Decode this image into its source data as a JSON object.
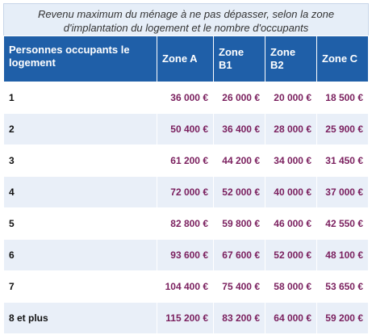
{
  "table": {
    "caption": "Revenu maximum du ménage à ne pas dépasser, selon la zone d'implantation du logement et le nombre d'occupants",
    "headers": [
      "Personnes occupants le logement",
      "Zone A",
      "Zone B1",
      "Zone B2",
      "Zone C"
    ],
    "rows": [
      [
        "1",
        "36 000 €",
        "26 000 €",
        "20 000 €",
        "18 500 €"
      ],
      [
        "2",
        "50 400 €",
        "36 400 €",
        "28 000 €",
        "25 900 €"
      ],
      [
        "3",
        "61 200 €",
        "44 200 €",
        "34 000 €",
        "31 450 €"
      ],
      [
        "4",
        "72 000 €",
        "52 000 €",
        "40 000 €",
        "37 000 €"
      ],
      [
        "5",
        "82 800 €",
        "59 800 €",
        "46 000 €",
        "42 550 €"
      ],
      [
        "6",
        "93 600 €",
        "67 600 €",
        "52 000 €",
        "48 100 €"
      ],
      [
        "7",
        "104 400 €",
        "75 400 €",
        "58 000 €",
        "53 650 €"
      ],
      [
        "8 et plus",
        "115 200 €",
        "83 200 €",
        "64 000 €",
        "59 200 €"
      ]
    ]
  },
  "colors": {
    "header_bg": "#1f5fa8",
    "header_text": "#ffffff",
    "caption_bg": "#e6eef8",
    "amount_text": "#7a1f5e",
    "stripe_bg": "#e9eff8"
  }
}
